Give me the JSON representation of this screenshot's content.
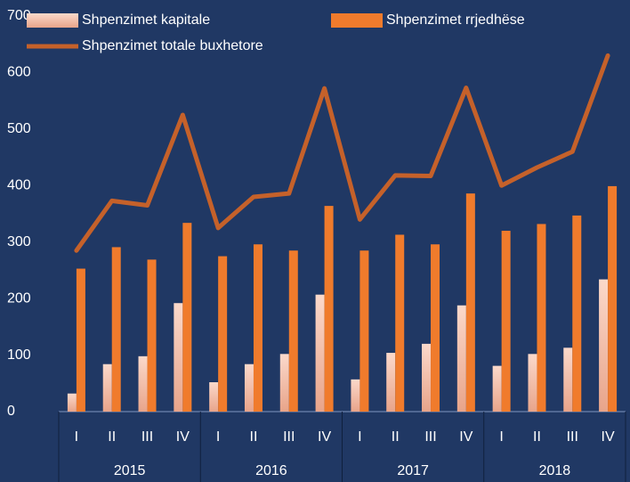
{
  "chart_data": {
    "type": "bar_line",
    "categories": [
      "I",
      "II",
      "III",
      "IV",
      "I",
      "II",
      "III",
      "IV",
      "I",
      "II",
      "III",
      "IV",
      "I",
      "II",
      "III",
      "IV"
    ],
    "groups": [
      "2015",
      "2016",
      "2017",
      "2018"
    ],
    "series": [
      {
        "name": "Shpenzimet kapitale",
        "type": "bar",
        "color": "#f6c3ad",
        "values": [
          32,
          84,
          98,
          192,
          52,
          84,
          102,
          207,
          57,
          104,
          120,
          188,
          81,
          102,
          113,
          234
        ]
      },
      {
        "name": "Shpenzimet rrjedhëse",
        "type": "bar",
        "color": "#f07b2c",
        "values": [
          253,
          291,
          269,
          334,
          275,
          296,
          285,
          364,
          285,
          313,
          296,
          386,
          320,
          332,
          347,
          399
        ]
      },
      {
        "name": "Shpenzimet totale buxhetore",
        "type": "line",
        "color": "#c5612a",
        "values": [
          285,
          373,
          365,
          525,
          325,
          380,
          386,
          572,
          340,
          418,
          417,
          573,
          400,
          432,
          460,
          630
        ]
      }
    ],
    "ylim": [
      0,
      700
    ],
    "yticks": [
      0,
      100,
      200,
      300,
      400,
      500,
      600,
      700
    ]
  }
}
